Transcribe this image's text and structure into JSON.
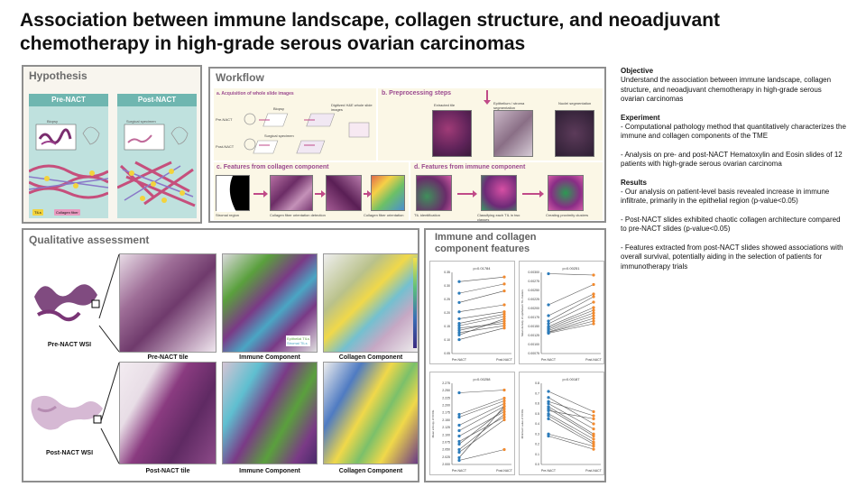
{
  "title": "Association between immune landscape, collagen structure, and neoadjuvant chemotherapy in high-grade serous ovarian carcinomas",
  "hypothesis": {
    "title": "Hypothesis",
    "pre_label": "Pre-NACT",
    "post_label": "Post-NACT",
    "biopsy": "Biopsy",
    "surgical": "Surgical specimen",
    "legend_til": "TILs",
    "legend_collagen": "Collagen fiber"
  },
  "workflow": {
    "title": "Workflow",
    "a_title": "a. Acquisition of whole slide images",
    "a_pre": "Pre-NACT",
    "a_post": "Post-NACT",
    "a_biopsy": "Biopsy",
    "a_surgical": "Surgical specimen",
    "a_digitized": "Digitized H&E whole slide images",
    "b_title": "b. Preprocessing steps",
    "b_tile": "Extracted tile",
    "b_seg": "Epithelium / stroma segmentation",
    "b_nuclei": "Nuclei segmentation",
    "c_title": "c. Features from collagen component",
    "c_stroma": "Stromal region",
    "c_detect": "Collagen fiber orientation detection",
    "c_orient": "Collagen fiber orientation",
    "d_title": "d. Features from immune component",
    "d_til": "TIL identification",
    "d_classify": "Classifying each TIL in two classes",
    "d_clusters": "Creating proximity clusters"
  },
  "qualitative": {
    "title": "Qualitative assessment",
    "pre_wsi": "Pre-NACT WSI",
    "pre_tile": "Pre-NACT tile",
    "immune": "Immune Component",
    "collagen": "Collagen Component",
    "post_wsi": "Post-NACT WSI",
    "post_tile": "Post-NACT tile",
    "immune2": "Immune Component",
    "collagen2": "Collagen Component",
    "legend_epi": "Epithelial TILs",
    "legend_str": "Stromal TILs"
  },
  "features": {
    "title_line1": "Immune and collagen",
    "title_line2": "component features"
  },
  "chart_data": [
    {
      "type": "line",
      "title": "",
      "annotation": "p=0.01784",
      "categories": [
        "Pre-NACT",
        "Post-NACT"
      ],
      "ylim": [
        0.0,
        0.35
      ],
      "yticks": [
        "0.35",
        "0.30",
        "0.25",
        "0.20",
        "0.15",
        "0.10",
        "0.05"
      ],
      "pairs": [
        [
          0.31,
          0.33
        ],
        [
          0.26,
          0.3
        ],
        [
          0.22,
          0.27
        ],
        [
          0.18,
          0.21
        ],
        [
          0.15,
          0.18
        ],
        [
          0.13,
          0.17
        ],
        [
          0.12,
          0.16
        ],
        [
          0.11,
          0.13
        ],
        [
          0.1,
          0.14
        ],
        [
          0.09,
          0.12
        ],
        [
          0.08,
          0.15
        ],
        [
          0.06,
          0.11
        ]
      ]
    },
    {
      "type": "line",
      "title": "",
      "annotation": "p=0.00251",
      "ylabel": "Mean density of epithelium TIL clusters",
      "categories": [
        "Pre-NACT",
        "Post-NACT"
      ],
      "ylim": [
        0.0,
        0.003
      ],
      "yticks": [
        "0.00300",
        "0.00275",
        "0.00250",
        "0.00225",
        "0.00200",
        "0.00175",
        "0.00150",
        "0.00125",
        "0.00100",
        "0.00075"
      ],
      "pairs": [
        [
          0.00295,
          0.0029
        ],
        [
          0.0018,
          0.00255
        ],
        [
          0.0014,
          0.0022
        ],
        [
          0.0012,
          0.0021
        ],
        [
          0.0011,
          0.0019
        ],
        [
          0.001,
          0.0017
        ],
        [
          0.00095,
          0.0016
        ],
        [
          0.0009,
          0.0015
        ],
        [
          0.00085,
          0.0014
        ],
        [
          0.0008,
          0.0013
        ],
        [
          0.00078,
          0.0012
        ],
        [
          0.00075,
          0.0011
        ]
      ]
    },
    {
      "type": "line",
      "title": "",
      "annotation": "p=0.00258",
      "ylabel": "Mean entropy of CFOE",
      "categories": [
        "Pre-NACT",
        "Post-NACT"
      ],
      "ylim": [
        1.975,
        2.275
      ],
      "yticks": [
        "2.275",
        "2.250",
        "2.225",
        "2.200",
        "2.175",
        "2.150",
        "2.125",
        "2.100",
        "2.075",
        "2.050",
        "2.025",
        "2.000"
      ],
      "pairs": [
        [
          2.24,
          2.25
        ],
        [
          2.16,
          2.22
        ],
        [
          2.15,
          2.21
        ],
        [
          2.12,
          2.2
        ],
        [
          2.1,
          2.19
        ],
        [
          2.08,
          2.17
        ],
        [
          2.06,
          2.15
        ],
        [
          2.05,
          2.18
        ],
        [
          2.03,
          2.16
        ],
        [
          2.02,
          2.14
        ],
        [
          2.0,
          2.19
        ],
        [
          1.99,
          2.03
        ]
      ]
    },
    {
      "type": "line",
      "title": "",
      "annotation": "p=0.00187",
      "ylabel": "Minimum value of CFOE",
      "categories": [
        "Pre-NACT",
        "Post-NACT"
      ],
      "ylim": [
        0.0,
        0.8
      ],
      "yticks": [
        "0.8",
        "0.7",
        "0.6",
        "0.5",
        "0.4",
        "0.3",
        "0.2",
        "0.1",
        "0.0"
      ],
      "pairs": [
        [
          0.72,
          0.52
        ],
        [
          0.66,
          0.4
        ],
        [
          0.62,
          0.48
        ],
        [
          0.6,
          0.35
        ],
        [
          0.57,
          0.3
        ],
        [
          0.55,
          0.28
        ],
        [
          0.53,
          0.45
        ],
        [
          0.5,
          0.25
        ],
        [
          0.48,
          0.22
        ],
        [
          0.45,
          0.2
        ],
        [
          0.3,
          0.18
        ],
        [
          0.28,
          0.15
        ]
      ]
    }
  ],
  "side": {
    "objective_h": "Objective",
    "objective": "Understand the association between immune landscape, collagen structure, and neoadjuvant chemotherapy in high-grade serous ovarian carcinomas",
    "experiment_h": "Experiment",
    "exp1": "- Computational pathology method that quantitatively characterizes the immune and collagen components of  the TME",
    "exp2": "- Analysis on pre- and post-NACT Hematoxylin and Eosin slides of 12 patients with high-grade serous ovarian carcinoma",
    "results_h": "Results",
    "res1": "- Our analysis on patient-level basis revealed increase in immune infiltrate, primarily in the epithelial region (p-value<0.05)",
    "res2": "- Post-NACT slides exhibited chaotic collagen architecture compared to pre-NACT slides (p-value<0.05)",
    "res3": "- Features extracted from post-NACT slides showed associations with overall survival, potentially aiding in the selection of patients for immunotherapy trials"
  },
  "colors": {
    "pre_point": "#2b7bba",
    "post_point": "#f28a2e",
    "accent": "#c04a88",
    "teal": "#6fb6b0"
  }
}
